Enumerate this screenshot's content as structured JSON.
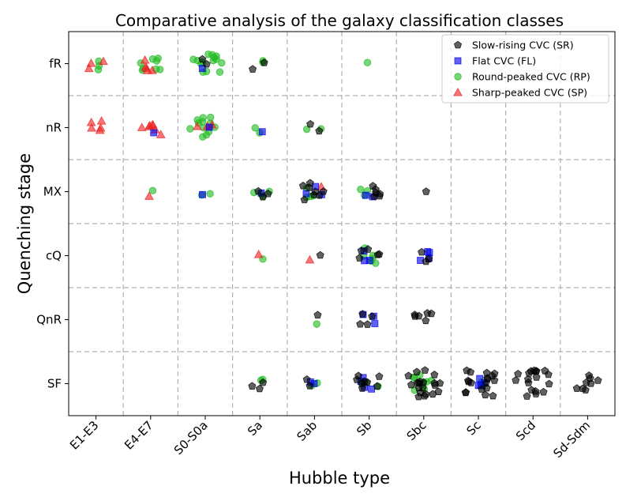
{
  "chart_data": {
    "type": "scatter",
    "title": "Comparative analysis of the galaxy classification classes",
    "xlabel": "Hubble type",
    "ylabel": "Quenching stage",
    "x_categories": [
      "E1-E3",
      "E4-E7",
      "S0-S0a",
      "Sa",
      "Sab",
      "Sb",
      "Sbc",
      "Sc",
      "Scd",
      "Sd-Sdm"
    ],
    "y_categories": [
      "SF",
      "QnR",
      "cQ",
      "MX",
      "nR",
      "fR"
    ],
    "grid": true,
    "legend_position": "top-right",
    "series": [
      {
        "name": "Slow-rising CVC (SR)",
        "marker": "pentagon",
        "color": "#000000",
        "points": [
          {
            "x": "S0-S0a",
            "y": "fR",
            "n": 2
          },
          {
            "x": "Sa",
            "y": "fR",
            "n": 2
          },
          {
            "x": "Sab",
            "y": "nR",
            "n": 2
          },
          {
            "x": "Sa",
            "y": "MX",
            "n": 3
          },
          {
            "x": "Sab",
            "y": "MX",
            "n": 8
          },
          {
            "x": "Sb",
            "y": "MX",
            "n": 6
          },
          {
            "x": "Sbc",
            "y": "MX",
            "n": 1
          },
          {
            "x": "Sab",
            "y": "cQ",
            "n": 1
          },
          {
            "x": "Sb",
            "y": "cQ",
            "n": 5
          },
          {
            "x": "Sbc",
            "y": "cQ",
            "n": 3
          },
          {
            "x": "Sab",
            "y": "QnR",
            "n": 1
          },
          {
            "x": "Sb",
            "y": "QnR",
            "n": 4
          },
          {
            "x": "Sbc",
            "y": "QnR",
            "n": 6
          },
          {
            "x": "Sa",
            "y": "SF",
            "n": 3
          },
          {
            "x": "Sab",
            "y": "SF",
            "n": 2
          },
          {
            "x": "Sb",
            "y": "SF",
            "n": 8
          },
          {
            "x": "Sbc",
            "y": "SF",
            "n": 20
          },
          {
            "x": "Sc",
            "y": "SF",
            "n": 18
          },
          {
            "x": "Scd",
            "y": "SF",
            "n": 18
          },
          {
            "x": "Sd-Sdm",
            "y": "SF",
            "n": 8
          }
        ]
      },
      {
        "name": "Flat CVC (FL)",
        "marker": "square",
        "color": "#0000ee",
        "points": [
          {
            "x": "S0-S0a",
            "y": "fR",
            "n": 1
          },
          {
            "x": "E4-E7",
            "y": "nR",
            "n": 1
          },
          {
            "x": "S0-S0a",
            "y": "nR",
            "n": 1
          },
          {
            "x": "Sa",
            "y": "nR",
            "n": 1
          },
          {
            "x": "S0-S0a",
            "y": "MX",
            "n": 1
          },
          {
            "x": "Sa",
            "y": "MX",
            "n": 1
          },
          {
            "x": "Sab",
            "y": "MX",
            "n": 3
          },
          {
            "x": "Sb",
            "y": "MX",
            "n": 2
          },
          {
            "x": "Sb",
            "y": "cQ",
            "n": 3
          },
          {
            "x": "Sbc",
            "y": "cQ",
            "n": 4
          },
          {
            "x": "Sb",
            "y": "QnR",
            "n": 3
          },
          {
            "x": "Sab",
            "y": "SF",
            "n": 2
          },
          {
            "x": "Sb",
            "y": "SF",
            "n": 4
          },
          {
            "x": "Sc",
            "y": "SF",
            "n": 4
          }
        ]
      },
      {
        "name": "Round-peaked CVC (RP)",
        "marker": "circle",
        "color": "#22bb22",
        "points": [
          {
            "x": "E1-E3",
            "y": "fR",
            "n": 3
          },
          {
            "x": "E4-E7",
            "y": "fR",
            "n": 8
          },
          {
            "x": "S0-S0a",
            "y": "fR",
            "n": 14
          },
          {
            "x": "Sa",
            "y": "fR",
            "n": 2
          },
          {
            "x": "Sb",
            "y": "fR",
            "n": 1
          },
          {
            "x": "S0-S0a",
            "y": "nR",
            "n": 12
          },
          {
            "x": "Sa",
            "y": "nR",
            "n": 2
          },
          {
            "x": "Sab",
            "y": "nR",
            "n": 2
          },
          {
            "x": "E4-E7",
            "y": "MX",
            "n": 1
          },
          {
            "x": "S0-S0a",
            "y": "MX",
            "n": 2
          },
          {
            "x": "Sa",
            "y": "MX",
            "n": 4
          },
          {
            "x": "Sab",
            "y": "MX",
            "n": 4
          },
          {
            "x": "Sb",
            "y": "MX",
            "n": 3
          },
          {
            "x": "Sa",
            "y": "cQ",
            "n": 1
          },
          {
            "x": "Sb",
            "y": "cQ",
            "n": 6
          },
          {
            "x": "Sab",
            "y": "QnR",
            "n": 1
          },
          {
            "x": "Sa",
            "y": "SF",
            "n": 2
          },
          {
            "x": "Sab",
            "y": "SF",
            "n": 2
          },
          {
            "x": "Sb",
            "y": "SF",
            "n": 4
          },
          {
            "x": "Sbc",
            "y": "SF",
            "n": 8
          },
          {
            "x": "Sc",
            "y": "SF",
            "n": 2
          }
        ]
      },
      {
        "name": "Sharp-peaked CVC (SP)",
        "marker": "triangle",
        "color": "#ee2222",
        "points": [
          {
            "x": "E1-E3",
            "y": "fR",
            "n": 3
          },
          {
            "x": "E4-E7",
            "y": "fR",
            "n": 5
          },
          {
            "x": "E1-E3",
            "y": "nR",
            "n": 5
          },
          {
            "x": "E4-E7",
            "y": "nR",
            "n": 7
          },
          {
            "x": "S0-S0a",
            "y": "nR",
            "n": 3
          },
          {
            "x": "E4-E7",
            "y": "MX",
            "n": 1
          },
          {
            "x": "Sab",
            "y": "MX",
            "n": 1
          },
          {
            "x": "Sa",
            "y": "cQ",
            "n": 1
          },
          {
            "x": "Sab",
            "y": "cQ",
            "n": 1
          }
        ]
      }
    ]
  }
}
